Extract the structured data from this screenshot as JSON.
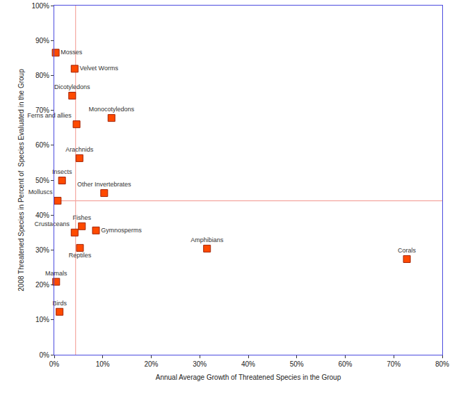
{
  "chart_data": {
    "type": "scatter",
    "x_label": "Annual Average Growth of Threatened Species in the Group",
    "y_label": "2008 Threatened Species in Percent of  Species Evaluated in the Group",
    "labels": [
      "Mosses",
      "Velvet Worms",
      "Dicotyledons",
      "Ferns and allies",
      "Monocotyledons",
      "Arachnids",
      "Insects",
      "Other Invertebrates",
      "Molluscs",
      "Fishes",
      "Crustaceans",
      "Gymnosperms",
      "Reptiles",
      "Amphibians",
      "Corals",
      "Mamals",
      "Birds"
    ],
    "x": [
      0.3,
      4.2,
      3.7,
      4.6,
      11.8,
      5.2,
      1.6,
      10.3,
      0.7,
      5.7,
      4.2,
      8.6,
      5.3,
      31.5,
      72.7,
      0.4,
      1.1
    ],
    "values": [
      86.5,
      81.9,
      74.2,
      66.0,
      67.8,
      56.3,
      49.9,
      46.3,
      44.1,
      36.8,
      35.0,
      35.6,
      30.6,
      30.4,
      27.4,
      20.9,
      12.3
    ],
    "reference_x": 4.4,
    "reference_y": 44.1,
    "color": "#ff4a00",
    "marker": "square",
    "grid": false,
    "xlim": [
      0,
      80
    ],
    "xticks": [
      {
        "value": 0,
        "label": "0%"
      },
      {
        "value": 10,
        "label": "10%"
      },
      {
        "value": 20,
        "label": "20%"
      },
      {
        "value": 30,
        "label": "30%"
      },
      {
        "value": 40,
        "label": "40%"
      },
      {
        "value": 50,
        "label": "50%"
      },
      {
        "value": 60,
        "label": "60%"
      },
      {
        "value": 70,
        "label": "70%"
      },
      {
        "value": 80,
        "label": "80%"
      }
    ],
    "ylim": [
      0,
      100
    ],
    "yticks": [
      {
        "value": 0,
        "label": "0%"
      },
      {
        "value": 10,
        "label": "10%"
      },
      {
        "value": 20,
        "label": "20%"
      },
      {
        "value": 30,
        "label": "30%"
      },
      {
        "value": 40,
        "label": "40%"
      },
      {
        "value": 50,
        "label": "50%"
      },
      {
        "value": 60,
        "label": "60%"
      },
      {
        "value": 70,
        "label": "70%"
      },
      {
        "value": 80,
        "label": "80%"
      },
      {
        "value": 90,
        "label": "90%"
      },
      {
        "value": 100,
        "label": "100%"
      }
    ]
  }
}
